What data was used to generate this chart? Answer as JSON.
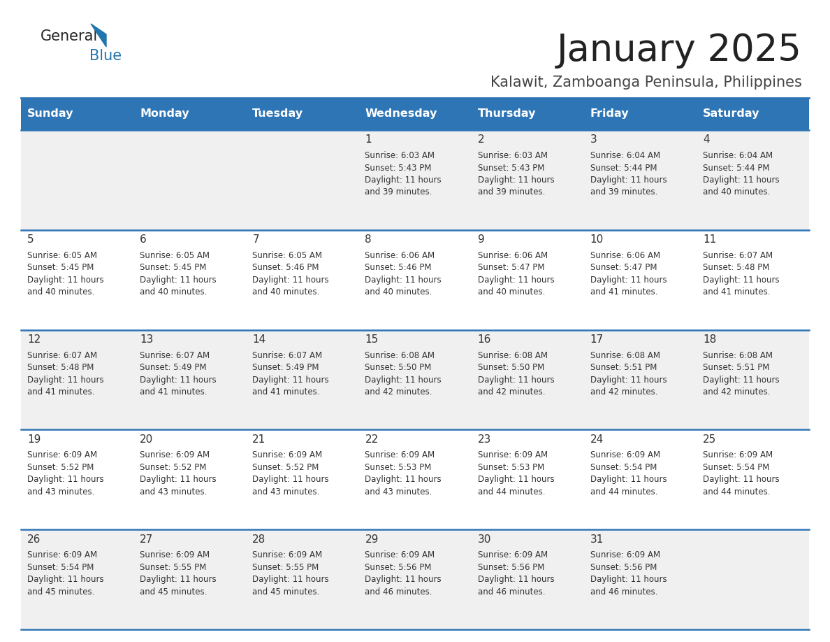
{
  "title": "January 2025",
  "subtitle": "Kalawit, Zamboanga Peninsula, Philippines",
  "days_of_week": [
    "Sunday",
    "Monday",
    "Tuesday",
    "Wednesday",
    "Thursday",
    "Friday",
    "Saturday"
  ],
  "header_bg_color": "#2e75b6",
  "header_text_color": "#ffffff",
  "row_bg_even": "#f0f0f0",
  "row_bg_odd": "#ffffff",
  "separator_color": "#2e75b6",
  "title_color": "#222222",
  "subtitle_color": "#444444",
  "day_number_color": "#333333",
  "cell_text_color": "#333333",
  "logo_text_color": "#222222",
  "logo_blue_color": "#2176ae",
  "calendar_data": [
    [
      {
        "day": 0,
        "sunrise": "",
        "sunset": "",
        "daylight_h": "",
        "daylight_m": ""
      },
      {
        "day": 0,
        "sunrise": "",
        "sunset": "",
        "daylight_h": "",
        "daylight_m": ""
      },
      {
        "day": 0,
        "sunrise": "",
        "sunset": "",
        "daylight_h": "",
        "daylight_m": ""
      },
      {
        "day": 1,
        "sunrise": "6:03 AM",
        "sunset": "5:43 PM",
        "daylight_h": "11 hours",
        "daylight_m": "and 39 minutes."
      },
      {
        "day": 2,
        "sunrise": "6:03 AM",
        "sunset": "5:43 PM",
        "daylight_h": "11 hours",
        "daylight_m": "and 39 minutes."
      },
      {
        "day": 3,
        "sunrise": "6:04 AM",
        "sunset": "5:44 PM",
        "daylight_h": "11 hours",
        "daylight_m": "and 39 minutes."
      },
      {
        "day": 4,
        "sunrise": "6:04 AM",
        "sunset": "5:44 PM",
        "daylight_h": "11 hours",
        "daylight_m": "and 40 minutes."
      }
    ],
    [
      {
        "day": 5,
        "sunrise": "6:05 AM",
        "sunset": "5:45 PM",
        "daylight_h": "11 hours",
        "daylight_m": "and 40 minutes."
      },
      {
        "day": 6,
        "sunrise": "6:05 AM",
        "sunset": "5:45 PM",
        "daylight_h": "11 hours",
        "daylight_m": "and 40 minutes."
      },
      {
        "day": 7,
        "sunrise": "6:05 AM",
        "sunset": "5:46 PM",
        "daylight_h": "11 hours",
        "daylight_m": "and 40 minutes."
      },
      {
        "day": 8,
        "sunrise": "6:06 AM",
        "sunset": "5:46 PM",
        "daylight_h": "11 hours",
        "daylight_m": "and 40 minutes."
      },
      {
        "day": 9,
        "sunrise": "6:06 AM",
        "sunset": "5:47 PM",
        "daylight_h": "11 hours",
        "daylight_m": "and 40 minutes."
      },
      {
        "day": 10,
        "sunrise": "6:06 AM",
        "sunset": "5:47 PM",
        "daylight_h": "11 hours",
        "daylight_m": "and 41 minutes."
      },
      {
        "day": 11,
        "sunrise": "6:07 AM",
        "sunset": "5:48 PM",
        "daylight_h": "11 hours",
        "daylight_m": "and 41 minutes."
      }
    ],
    [
      {
        "day": 12,
        "sunrise": "6:07 AM",
        "sunset": "5:48 PM",
        "daylight_h": "11 hours",
        "daylight_m": "and 41 minutes."
      },
      {
        "day": 13,
        "sunrise": "6:07 AM",
        "sunset": "5:49 PM",
        "daylight_h": "11 hours",
        "daylight_m": "and 41 minutes."
      },
      {
        "day": 14,
        "sunrise": "6:07 AM",
        "sunset": "5:49 PM",
        "daylight_h": "11 hours",
        "daylight_m": "and 41 minutes."
      },
      {
        "day": 15,
        "sunrise": "6:08 AM",
        "sunset": "5:50 PM",
        "daylight_h": "11 hours",
        "daylight_m": "and 42 minutes."
      },
      {
        "day": 16,
        "sunrise": "6:08 AM",
        "sunset": "5:50 PM",
        "daylight_h": "11 hours",
        "daylight_m": "and 42 minutes."
      },
      {
        "day": 17,
        "sunrise": "6:08 AM",
        "sunset": "5:51 PM",
        "daylight_h": "11 hours",
        "daylight_m": "and 42 minutes."
      },
      {
        "day": 18,
        "sunrise": "6:08 AM",
        "sunset": "5:51 PM",
        "daylight_h": "11 hours",
        "daylight_m": "and 42 minutes."
      }
    ],
    [
      {
        "day": 19,
        "sunrise": "6:09 AM",
        "sunset": "5:52 PM",
        "daylight_h": "11 hours",
        "daylight_m": "and 43 minutes."
      },
      {
        "day": 20,
        "sunrise": "6:09 AM",
        "sunset": "5:52 PM",
        "daylight_h": "11 hours",
        "daylight_m": "and 43 minutes."
      },
      {
        "day": 21,
        "sunrise": "6:09 AM",
        "sunset": "5:52 PM",
        "daylight_h": "11 hours",
        "daylight_m": "and 43 minutes."
      },
      {
        "day": 22,
        "sunrise": "6:09 AM",
        "sunset": "5:53 PM",
        "daylight_h": "11 hours",
        "daylight_m": "and 43 minutes."
      },
      {
        "day": 23,
        "sunrise": "6:09 AM",
        "sunset": "5:53 PM",
        "daylight_h": "11 hours",
        "daylight_m": "and 44 minutes."
      },
      {
        "day": 24,
        "sunrise": "6:09 AM",
        "sunset": "5:54 PM",
        "daylight_h": "11 hours",
        "daylight_m": "and 44 minutes."
      },
      {
        "day": 25,
        "sunrise": "6:09 AM",
        "sunset": "5:54 PM",
        "daylight_h": "11 hours",
        "daylight_m": "and 44 minutes."
      }
    ],
    [
      {
        "day": 26,
        "sunrise": "6:09 AM",
        "sunset": "5:54 PM",
        "daylight_h": "11 hours",
        "daylight_m": "and 45 minutes."
      },
      {
        "day": 27,
        "sunrise": "6:09 AM",
        "sunset": "5:55 PM",
        "daylight_h": "11 hours",
        "daylight_m": "and 45 minutes."
      },
      {
        "day": 28,
        "sunrise": "6:09 AM",
        "sunset": "5:55 PM",
        "daylight_h": "11 hours",
        "daylight_m": "and 45 minutes."
      },
      {
        "day": 29,
        "sunrise": "6:09 AM",
        "sunset": "5:56 PM",
        "daylight_h": "11 hours",
        "daylight_m": "and 46 minutes."
      },
      {
        "day": 30,
        "sunrise": "6:09 AM",
        "sunset": "5:56 PM",
        "daylight_h": "11 hours",
        "daylight_m": "and 46 minutes."
      },
      {
        "day": 31,
        "sunrise": "6:09 AM",
        "sunset": "5:56 PM",
        "daylight_h": "11 hours",
        "daylight_m": "and 46 minutes."
      },
      {
        "day": 0,
        "sunrise": "",
        "sunset": "",
        "daylight_h": "",
        "daylight_m": ""
      }
    ]
  ]
}
